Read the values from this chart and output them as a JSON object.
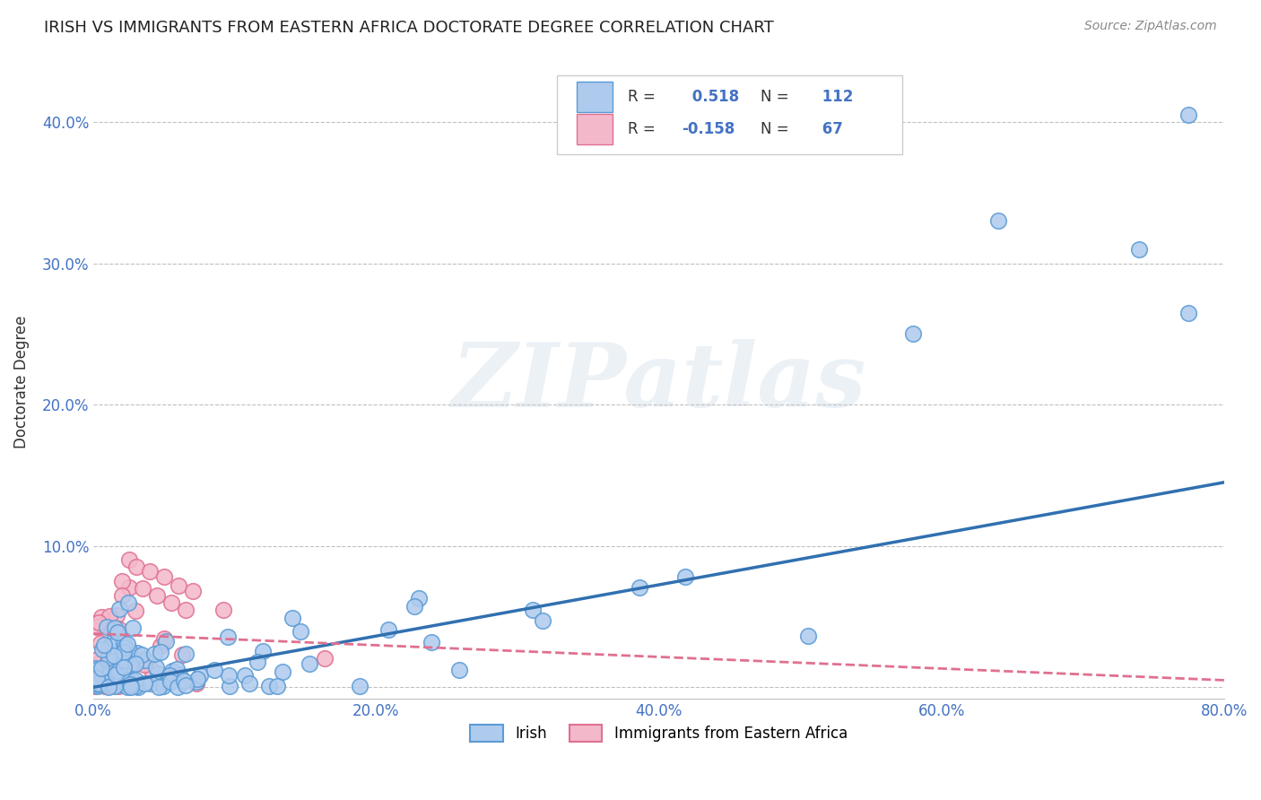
{
  "title": "IRISH VS IMMIGRANTS FROM EASTERN AFRICA DOCTORATE DEGREE CORRELATION CHART",
  "source_text": "Source: ZipAtlas.com",
  "ylabel_label": "Doctorate Degree",
  "x_min": 0.0,
  "x_max": 0.8,
  "y_min": -0.008,
  "y_max": 0.44,
  "x_ticks": [
    0.0,
    0.2,
    0.4,
    0.6,
    0.8
  ],
  "x_tick_labels": [
    "0.0%",
    "20.0%",
    "40.0%",
    "60.0%",
    "80.0%"
  ],
  "y_ticks": [
    0.0,
    0.1,
    0.2,
    0.3,
    0.4
  ],
  "y_tick_labels": [
    "",
    "10.0%",
    "20.0%",
    "30.0%",
    "40.0%"
  ],
  "irish_color": "#aecbee",
  "irish_edge_color": "#5b9bd5",
  "pink_color": "#f4b8cb",
  "pink_edge_color": "#e07090",
  "blue_line_color": "#3070b0",
  "pink_line_color": "#e07090",
  "R_irish": 0.518,
  "N_irish": 112,
  "R_pink": -0.158,
  "N_pink": 67,
  "watermark": "ZIPatlas",
  "legend_irish": "Irish",
  "legend_pink": "Immigrants from Eastern Africa"
}
